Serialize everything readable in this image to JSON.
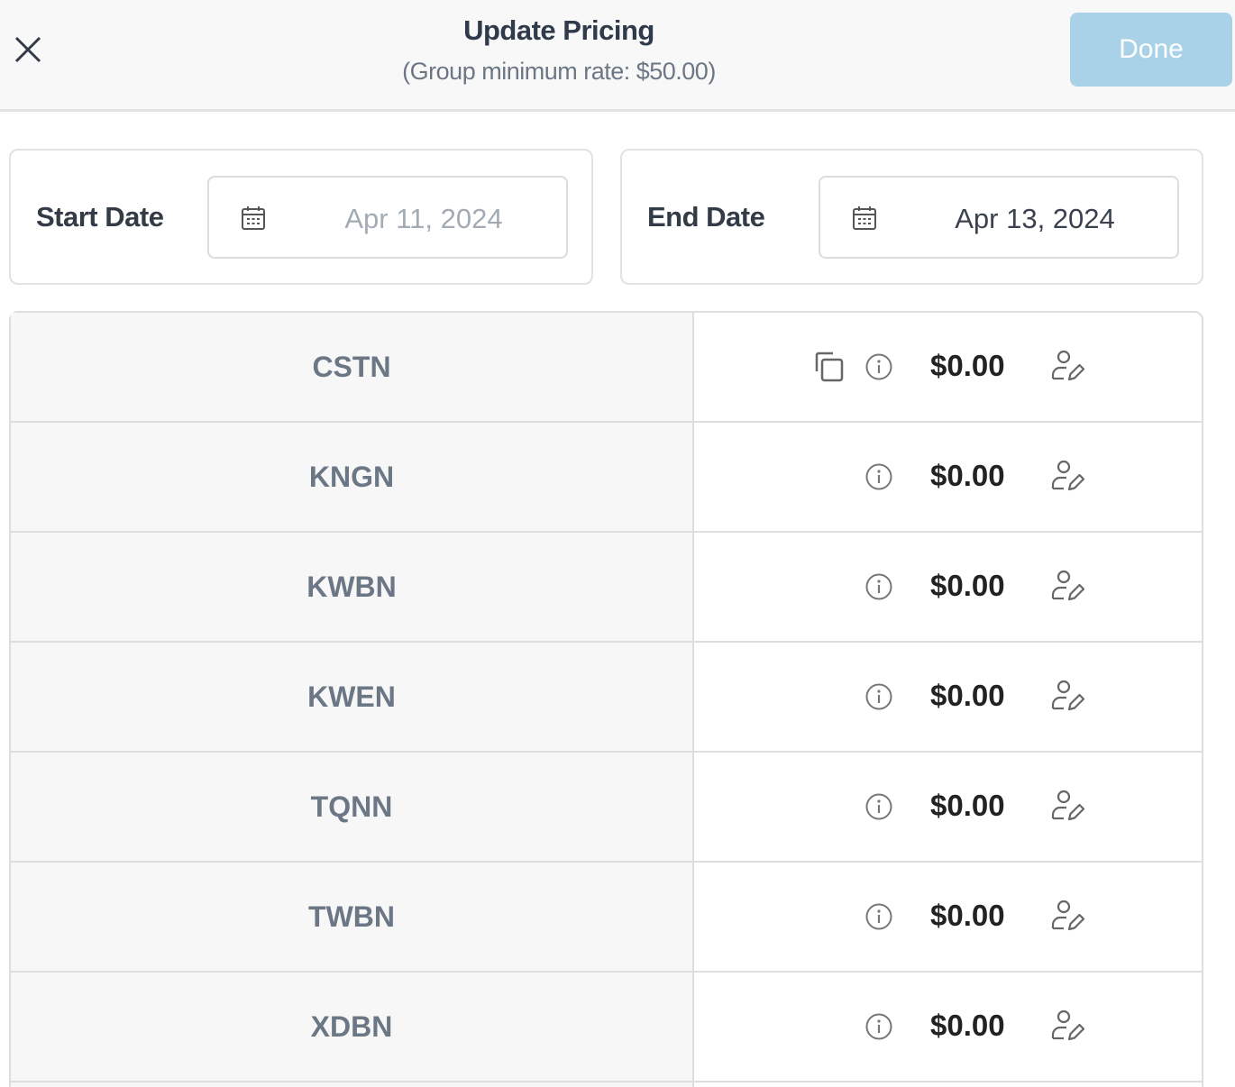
{
  "header": {
    "title": "Update Pricing",
    "subtitle": "(Group minimum rate: $50.00)",
    "done_label": "Done",
    "close_icon": "close-icon"
  },
  "start_date": {
    "label": "Start Date",
    "value": "Apr 11, 2024",
    "value_color": "#a3abb4"
  },
  "end_date": {
    "label": "End Date",
    "value": "Apr 13, 2024",
    "value_color": "#3a4250"
  },
  "rows": [
    {
      "code": "CSTN",
      "price": "$0.00",
      "has_copy": true
    },
    {
      "code": "KNGN",
      "price": "$0.00",
      "has_copy": false
    },
    {
      "code": "KWBN",
      "price": "$0.00",
      "has_copy": false
    },
    {
      "code": "KWEN",
      "price": "$0.00",
      "has_copy": false
    },
    {
      "code": "TQNN",
      "price": "$0.00",
      "has_copy": false
    },
    {
      "code": "TWBN",
      "price": "$0.00",
      "has_copy": false
    },
    {
      "code": "XDBN",
      "price": "$0.00",
      "has_copy": false
    }
  ],
  "colors": {
    "done_button": "#a9d1e8"
  }
}
